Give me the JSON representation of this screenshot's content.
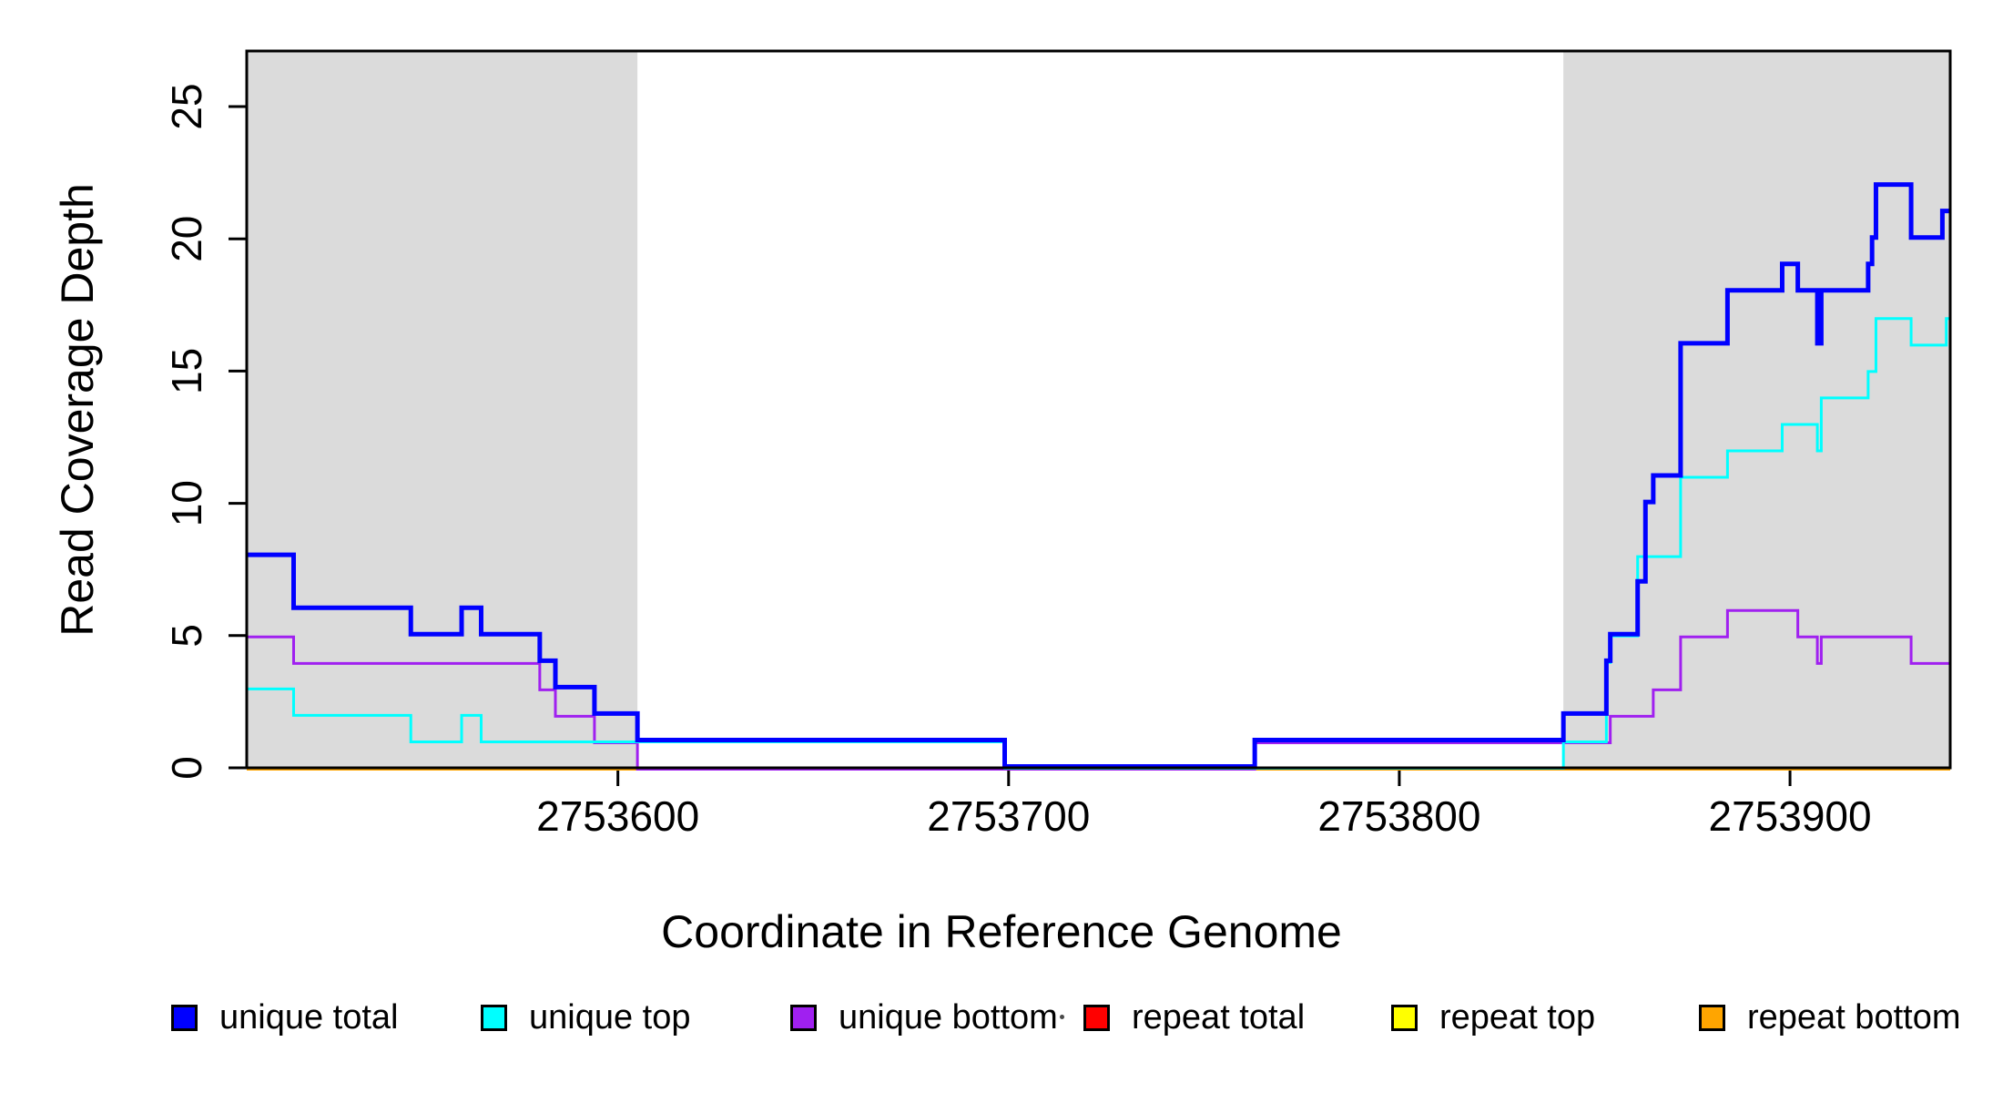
{
  "figure": {
    "y_axis_title": "Read Coverage Depth",
    "x_axis_title": "Coordinate in Reference Genome",
    "background_color": "#ffffff",
    "shaded_region_color": "#dbdbdb",
    "plot_border_color": "#000000"
  },
  "chart_data": {
    "type": "line",
    "subtype": "step-coverage-plot",
    "title": "",
    "xlabel": "Coordinate in Reference Genome",
    "ylabel": "Read Coverage Depth",
    "xlim": [
      2753505,
      2753941
    ],
    "ylim": [
      0,
      27.1
    ],
    "grid": false,
    "legend_position": "bottom",
    "x_ticks": [
      {
        "value": 2753600,
        "label": "2753600"
      },
      {
        "value": 2753700,
        "label": "2753700"
      },
      {
        "value": 2753800,
        "label": "2753800"
      },
      {
        "value": 2753900,
        "label": "2753900"
      }
    ],
    "y_ticks": [
      {
        "value": 0,
        "label": "0"
      },
      {
        "value": 5,
        "label": "5"
      },
      {
        "value": 10,
        "label": "10"
      },
      {
        "value": 15,
        "label": "15"
      },
      {
        "value": 20,
        "label": "20"
      },
      {
        "value": 25,
        "label": "25"
      }
    ],
    "shaded_regions": [
      {
        "x0": 2753505,
        "x1": 2753605,
        "label": "left-gray-region"
      },
      {
        "x0": 2753842,
        "x1": 2753941,
        "label": "right-gray-region"
      }
    ],
    "series": [
      {
        "name": "repeat top",
        "color": "#ffff00",
        "line_width": 3,
        "steps": [
          [
            2753505,
            0
          ]
        ]
      },
      {
        "name": "repeat total",
        "color": "#ff0000",
        "line_width": 3,
        "steps": [
          [
            2753505,
            0
          ]
        ]
      },
      {
        "name": "repeat bottom",
        "color": "#ffa500",
        "line_width": 4,
        "steps": [
          [
            2753505,
            0
          ]
        ]
      },
      {
        "name": "unique bottom",
        "color": "#a020f0",
        "line_width": 3,
        "steps": [
          [
            2753505,
            5
          ],
          [
            2753517,
            4
          ],
          [
            2753580,
            3
          ],
          [
            2753584,
            2
          ],
          [
            2753594,
            1
          ],
          [
            2753605,
            0
          ],
          [
            2753763,
            1
          ],
          [
            2753854,
            2
          ],
          [
            2753865,
            3
          ],
          [
            2753872,
            5
          ],
          [
            2753884,
            6
          ],
          [
            2753902,
            5
          ],
          [
            2753907,
            4
          ],
          [
            2753908,
            5
          ],
          [
            2753931,
            4
          ]
        ]
      },
      {
        "name": "unique top",
        "color": "#00ffff",
        "line_width": 3,
        "steps": [
          [
            2753505,
            3
          ],
          [
            2753517,
            2
          ],
          [
            2753547,
            1
          ],
          [
            2753560,
            2
          ],
          [
            2753565,
            1
          ],
          [
            2753699,
            0
          ],
          [
            2753842,
            1
          ],
          [
            2753853,
            4
          ],
          [
            2753854,
            5
          ],
          [
            2753861,
            8
          ],
          [
            2753872,
            11
          ],
          [
            2753884,
            12
          ],
          [
            2753898,
            13
          ],
          [
            2753907,
            12
          ],
          [
            2753908,
            14
          ],
          [
            2753920,
            15
          ],
          [
            2753922,
            17
          ],
          [
            2753931,
            16
          ],
          [
            2753940,
            17
          ]
        ]
      },
      {
        "name": "unique total",
        "color": "#0000ff",
        "line_width": 5,
        "steps": [
          [
            2753505,
            8
          ],
          [
            2753517,
            6
          ],
          [
            2753547,
            5
          ],
          [
            2753560,
            6
          ],
          [
            2753565,
            5
          ],
          [
            2753580,
            4
          ],
          [
            2753584,
            3
          ],
          [
            2753594,
            2
          ],
          [
            2753605,
            1
          ],
          [
            2753699,
            0
          ],
          [
            2753763,
            1
          ],
          [
            2753842,
            2
          ],
          [
            2753853,
            4
          ],
          [
            2753854,
            5
          ],
          [
            2753861,
            7
          ],
          [
            2753863,
            10
          ],
          [
            2753865,
            11
          ],
          [
            2753872,
            16
          ],
          [
            2753884,
            18
          ],
          [
            2753898,
            19
          ],
          [
            2753902,
            18
          ],
          [
            2753907,
            16
          ],
          [
            2753908,
            18
          ],
          [
            2753920,
            19
          ],
          [
            2753921,
            20
          ],
          [
            2753922,
            22
          ],
          [
            2753931,
            20
          ],
          [
            2753939,
            21
          ]
        ]
      }
    ]
  },
  "legend": {
    "items": [
      {
        "label": "unique total",
        "color": "#0000ff"
      },
      {
        "label": "unique top",
        "color": "#00ffff"
      },
      {
        "label": "unique bottom",
        "color": "#a020f0"
      },
      {
        "label": "repeat total",
        "color": "#ff0000"
      },
      {
        "label": "repeat top",
        "color": "#ffff00"
      },
      {
        "label": "repeat bottom",
        "color": "#ffa500"
      }
    ]
  }
}
